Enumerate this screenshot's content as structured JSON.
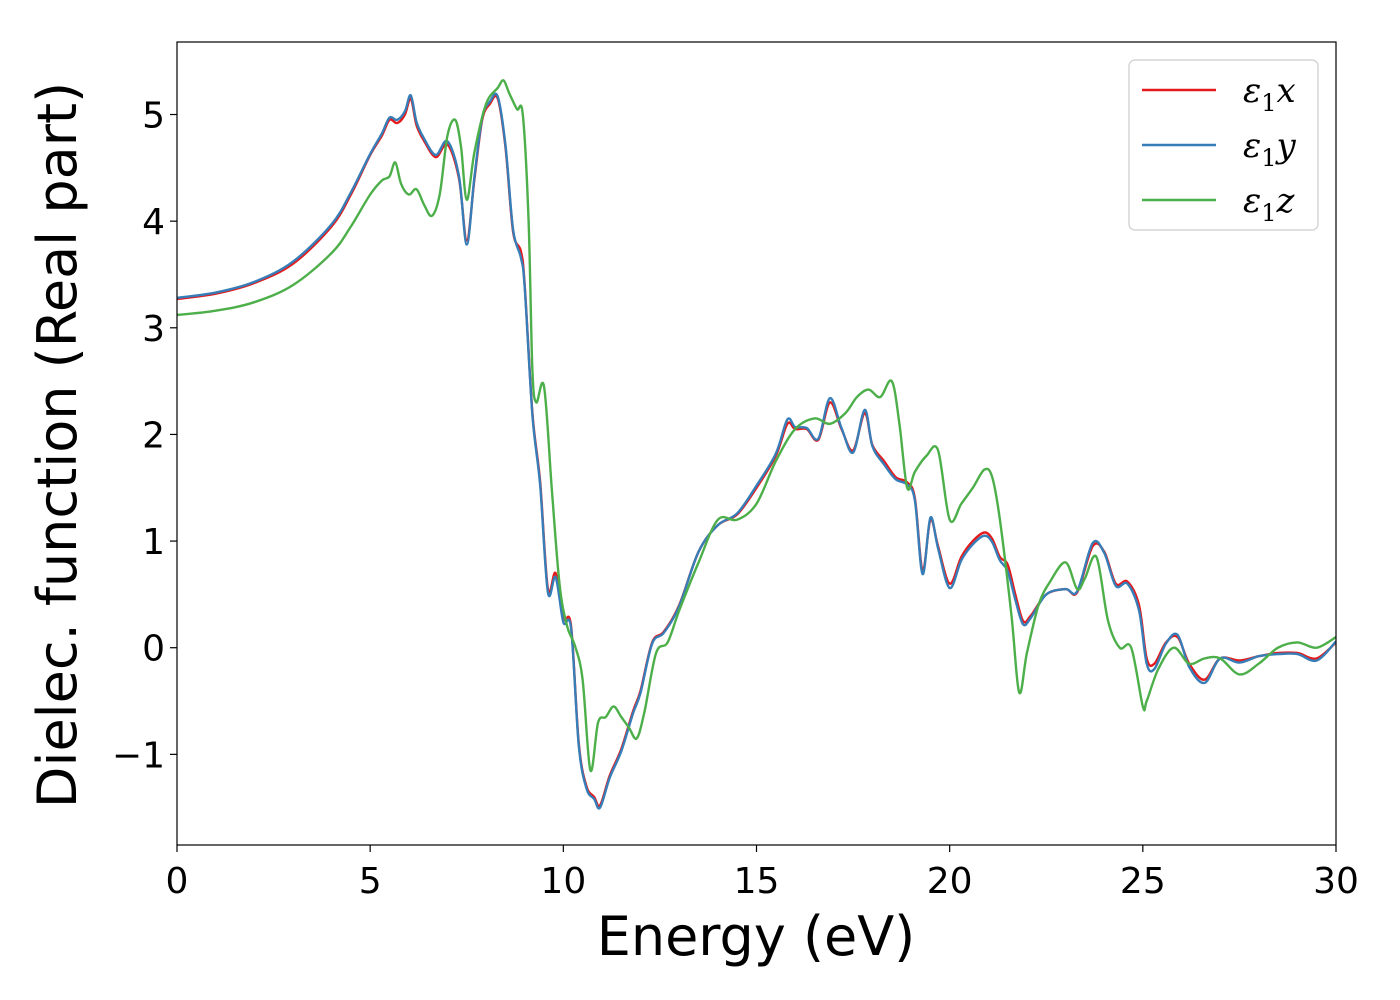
{
  "chart_data": {
    "type": "line",
    "xlabel": "Energy (eV)",
    "ylabel": "Dielec. function (Real part)",
    "xlim": [
      0,
      30
    ],
    "ylim": [
      -1.85,
      5.68
    ],
    "xticks": [
      0,
      5,
      10,
      15,
      20,
      25,
      30
    ],
    "xtick_labels": [
      "0",
      "5",
      "10",
      "15",
      "20",
      "25",
      "30"
    ],
    "yticks": [
      -1,
      0,
      1,
      2,
      3,
      4,
      5
    ],
    "ytick_labels": [
      "−1",
      "0",
      "1",
      "2",
      "3",
      "4",
      "5"
    ],
    "grid": false,
    "legend_position": "top-right",
    "series": [
      {
        "name": "ε1x",
        "color": "#e41a1c",
        "x": [
          0,
          1,
          2,
          3,
          4,
          4.5,
          5,
          5.3,
          5.5,
          5.7,
          5.9,
          6.05,
          6.2,
          6.4,
          6.7,
          7.0,
          7.3,
          7.5,
          7.7,
          7.9,
          8.1,
          8.3,
          8.5,
          8.7,
          8.9,
          9.0,
          9.2,
          9.4,
          9.6,
          9.8,
          10.0,
          10.2,
          10.4,
          10.6,
          10.8,
          10.95,
          11.2,
          11.5,
          11.8,
          12.0,
          12.3,
          12.6,
          13.0,
          13.5,
          14.0,
          14.5,
          15.0,
          15.5,
          15.8,
          16.0,
          16.3,
          16.6,
          16.9,
          17.2,
          17.5,
          17.8,
          18.0,
          18.3,
          18.6,
          18.9,
          19.1,
          19.3,
          19.5,
          19.7,
          20.0,
          20.3,
          20.6,
          20.9,
          21.1,
          21.3,
          21.5,
          21.7,
          21.9,
          22.1,
          22.5,
          23.0,
          23.3,
          23.7,
          24.0,
          24.3,
          24.6,
          24.9,
          25.1,
          25.3,
          25.6,
          25.9,
          26.2,
          26.6,
          27.0,
          27.5,
          28.0,
          28.5,
          29.0,
          29.5,
          30.0
        ],
        "y": [
          3.27,
          3.32,
          3.42,
          3.6,
          3.95,
          4.25,
          4.62,
          4.8,
          4.95,
          4.92,
          5.0,
          5.15,
          4.9,
          4.75,
          4.6,
          4.72,
          4.4,
          3.82,
          4.4,
          4.95,
          5.1,
          5.15,
          4.7,
          3.9,
          3.72,
          3.4,
          2.2,
          1.55,
          0.55,
          0.7,
          0.28,
          0.2,
          -0.9,
          -1.3,
          -1.4,
          -1.48,
          -1.2,
          -0.95,
          -0.6,
          -0.4,
          0.05,
          0.15,
          0.4,
          0.9,
          1.15,
          1.25,
          1.5,
          1.8,
          2.1,
          2.05,
          2.05,
          1.95,
          2.3,
          2.05,
          1.85,
          2.2,
          1.9,
          1.75,
          1.6,
          1.55,
          1.4,
          0.72,
          1.2,
          0.95,
          0.6,
          0.85,
          1.0,
          1.08,
          1.02,
          0.85,
          0.78,
          0.5,
          0.25,
          0.3,
          0.5,
          0.55,
          0.52,
          0.95,
          0.9,
          0.6,
          0.62,
          0.4,
          -0.1,
          -0.15,
          0.05,
          0.1,
          -0.15,
          -0.3,
          -0.1,
          -0.12,
          -0.08,
          -0.05,
          -0.05,
          -0.1,
          0.05
        ]
      },
      {
        "name": "ε1y",
        "color": "#377eb8",
        "x": [
          0,
          1,
          2,
          3,
          4,
          4.5,
          5,
          5.3,
          5.5,
          5.7,
          5.9,
          6.05,
          6.2,
          6.4,
          6.7,
          7.0,
          7.3,
          7.5,
          7.7,
          7.9,
          8.1,
          8.3,
          8.5,
          8.7,
          8.9,
          9.0,
          9.2,
          9.4,
          9.6,
          9.8,
          10.0,
          10.2,
          10.4,
          10.6,
          10.8,
          10.95,
          11.2,
          11.5,
          11.8,
          12.0,
          12.3,
          12.6,
          13.0,
          13.5,
          14.0,
          14.5,
          15.0,
          15.5,
          15.8,
          16.0,
          16.3,
          16.6,
          16.9,
          17.2,
          17.5,
          17.8,
          18.0,
          18.3,
          18.6,
          18.9,
          19.1,
          19.3,
          19.5,
          19.7,
          20.0,
          20.3,
          20.6,
          20.9,
          21.1,
          21.3,
          21.5,
          21.7,
          21.9,
          22.1,
          22.5,
          23.0,
          23.3,
          23.7,
          24.0,
          24.3,
          24.6,
          24.9,
          25.1,
          25.3,
          25.6,
          25.9,
          26.2,
          26.6,
          27.0,
          27.5,
          28.0,
          28.5,
          29.0,
          29.5,
          30.0
        ],
        "y": [
          3.28,
          3.33,
          3.43,
          3.62,
          3.97,
          4.27,
          4.63,
          4.82,
          4.97,
          4.95,
          5.03,
          5.18,
          4.93,
          4.77,
          4.62,
          4.75,
          4.42,
          3.78,
          4.42,
          4.97,
          5.12,
          5.17,
          4.72,
          3.92,
          3.66,
          3.38,
          2.18,
          1.52,
          0.52,
          0.66,
          0.24,
          0.18,
          -0.92,
          -1.32,
          -1.42,
          -1.5,
          -1.22,
          -0.97,
          -0.62,
          -0.42,
          0.04,
          0.14,
          0.39,
          0.9,
          1.15,
          1.26,
          1.52,
          1.82,
          2.14,
          2.07,
          2.06,
          1.96,
          2.34,
          2.06,
          1.83,
          2.23,
          1.89,
          1.72,
          1.58,
          1.53,
          1.38,
          0.69,
          1.22,
          0.93,
          0.56,
          0.82,
          0.97,
          1.05,
          0.99,
          0.82,
          0.72,
          0.45,
          0.22,
          0.28,
          0.5,
          0.55,
          0.53,
          0.98,
          0.89,
          0.58,
          0.6,
          0.35,
          -0.15,
          -0.2,
          0.04,
          0.12,
          -0.18,
          -0.33,
          -0.1,
          -0.14,
          -0.08,
          -0.06,
          -0.06,
          -0.12,
          0.06
        ]
      },
      {
        "name": "ε1z",
        "color": "#4daf4a",
        "x": [
          0,
          1,
          2,
          3,
          4,
          4.5,
          5,
          5.3,
          5.5,
          5.65,
          5.8,
          6.0,
          6.2,
          6.4,
          6.6,
          6.8,
          7.0,
          7.2,
          7.35,
          7.5,
          7.7,
          8.0,
          8.3,
          8.45,
          8.6,
          8.8,
          8.95,
          9.1,
          9.2,
          9.3,
          9.5,
          9.7,
          9.9,
          10.1,
          10.3,
          10.5,
          10.7,
          10.9,
          11.1,
          11.3,
          11.5,
          11.7,
          11.9,
          12.1,
          12.4,
          12.7,
          13.0,
          13.5,
          14.0,
          14.5,
          15.0,
          15.5,
          16.0,
          16.5,
          16.9,
          17.3,
          17.6,
          17.9,
          18.2,
          18.5,
          18.7,
          18.9,
          19.1,
          19.4,
          19.7,
          20.0,
          20.3,
          20.6,
          20.9,
          21.1,
          21.3,
          21.6,
          21.8,
          22.0,
          22.3,
          22.6,
          23.0,
          23.3,
          23.5,
          23.8,
          24.1,
          24.4,
          24.7,
          25.0,
          25.1,
          25.4,
          25.8,
          26.2,
          26.6,
          27.0,
          27.5,
          28.0,
          28.5,
          29.0,
          29.5,
          30.0
        ],
        "y": [
          3.12,
          3.16,
          3.24,
          3.4,
          3.7,
          3.95,
          4.25,
          4.38,
          4.42,
          4.55,
          4.35,
          4.25,
          4.3,
          4.15,
          4.05,
          4.25,
          4.8,
          4.95,
          4.7,
          4.2,
          4.65,
          5.1,
          5.25,
          5.32,
          5.2,
          5.05,
          5.0,
          4.0,
          2.6,
          2.3,
          2.45,
          1.5,
          0.6,
          0.2,
          0.02,
          -0.3,
          -1.15,
          -0.7,
          -0.65,
          -0.55,
          -0.65,
          -0.75,
          -0.85,
          -0.6,
          -0.05,
          0.05,
          0.35,
          0.8,
          1.2,
          1.2,
          1.35,
          1.75,
          2.05,
          2.15,
          2.1,
          2.2,
          2.35,
          2.42,
          2.35,
          2.5,
          2.1,
          1.5,
          1.65,
          1.8,
          1.85,
          1.2,
          1.35,
          1.5,
          1.67,
          1.6,
          1.2,
          0.3,
          -0.42,
          -0.05,
          0.4,
          0.62,
          0.8,
          0.55,
          0.65,
          0.85,
          0.25,
          0.0,
          0.0,
          -0.55,
          -0.5,
          -0.2,
          0.0,
          -0.15,
          -0.1,
          -0.1,
          -0.25,
          -0.15,
          0.0,
          0.05,
          0.0,
          0.1
        ]
      }
    ]
  }
}
